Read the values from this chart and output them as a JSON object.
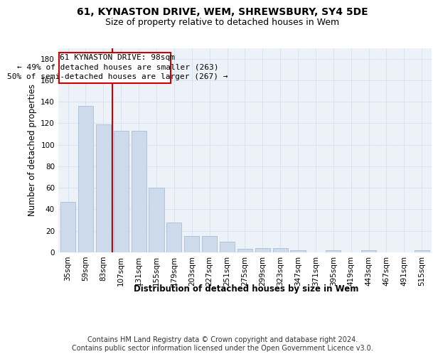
{
  "title": "61, KYNASTON DRIVE, WEM, SHREWSBURY, SY4 5DE",
  "subtitle": "Size of property relative to detached houses in Wem",
  "xlabel": "Distribution of detached houses by size in Wem",
  "ylabel": "Number of detached properties",
  "categories": [
    "35sqm",
    "59sqm",
    "83sqm",
    "107sqm",
    "131sqm",
    "155sqm",
    "179sqm",
    "203sqm",
    "227sqm",
    "251sqm",
    "275sqm",
    "299sqm",
    "323sqm",
    "347sqm",
    "371sqm",
    "395sqm",
    "419sqm",
    "443sqm",
    "467sqm",
    "491sqm",
    "515sqm"
  ],
  "values": [
    47,
    136,
    119,
    113,
    113,
    60,
    28,
    15,
    15,
    10,
    3,
    4,
    4,
    2,
    0,
    2,
    0,
    2,
    0,
    0,
    2
  ],
  "bar_color": "#ccdaeb",
  "bar_edge_color": "#a8bfd4",
  "grid_color": "#d8e4f0",
  "background_color": "#edf2f9",
  "vline_x": 2.5,
  "vline_color": "#cc0000",
  "ann_line1": "61 KYNASTON DRIVE: 98sqm",
  "ann_line2": "← 49% of detached houses are smaller (263)",
  "ann_line3": "50% of semi-detached houses are larger (267) →",
  "annotation_box_color": "#cc0000",
  "footer_text": "Contains HM Land Registry data © Crown copyright and database right 2024.\nContains public sector information licensed under the Open Government Licence v3.0.",
  "ylim": [
    0,
    190
  ],
  "yticks": [
    0,
    20,
    40,
    60,
    80,
    100,
    120,
    140,
    160,
    180
  ],
  "title_fontsize": 10,
  "subtitle_fontsize": 9,
  "label_fontsize": 8.5,
  "tick_fontsize": 7.5,
  "ann_fontsize": 8,
  "footer_fontsize": 7
}
